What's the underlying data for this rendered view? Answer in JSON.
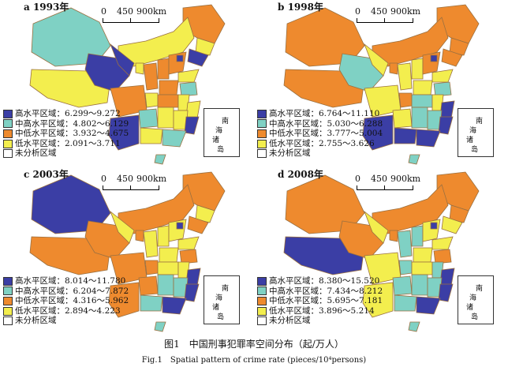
{
  "colors": {
    "high": "#3b3ea5",
    "mid_high": "#7fd1c4",
    "mid_low": "#ee8a2e",
    "low": "#f3ee4e",
    "none": "#ffffff",
    "border": "#9a7040"
  },
  "scale": {
    "tick0": "0",
    "tick1": "450",
    "tick2": "900km"
  },
  "inset": {
    "line1": "南",
    "line2": "海",
    "line3": "诸",
    "line4": "岛"
  },
  "panels": [
    {
      "label": "a 1993年",
      "legend": [
        "高水平区域：6.299～9.272",
        "中高水平区域：4.802～6.129",
        "中低水平区域：3.932～4.675",
        "低水平区域：2.091～3.711",
        "未分析区域"
      ]
    },
    {
      "label": "b 1998年",
      "legend": [
        "高水平区域：6.764～11.110",
        "中高水平区域：5.030～6.288",
        "中低水平区域：3.777～5.004",
        "低水平区域：2.755～3.626",
        "未分析区域"
      ]
    },
    {
      "label": "c 2003年",
      "legend": [
        "高水平区域：8.014～11.780",
        "中高水平区域：6.204～7.872",
        "中低水平区域：4.316～5.962",
        "低水平区域：2.894～4.223",
        "未分析区域"
      ]
    },
    {
      "label": "d 2008年",
      "legend": [
        "高水平区域：8.380～15.520",
        "中高水平区域：7.434～8.212",
        "中低水平区域：5.695～7.181",
        "低水平区域：3.896～5.214",
        "未分析区域"
      ]
    }
  ],
  "caption_cn": "图1　中国刑事犯罪率空间分布（起/万人）",
  "caption_en": "Fig.1　Spatial pattern of crime rate (pieces/10⁴persons)"
}
